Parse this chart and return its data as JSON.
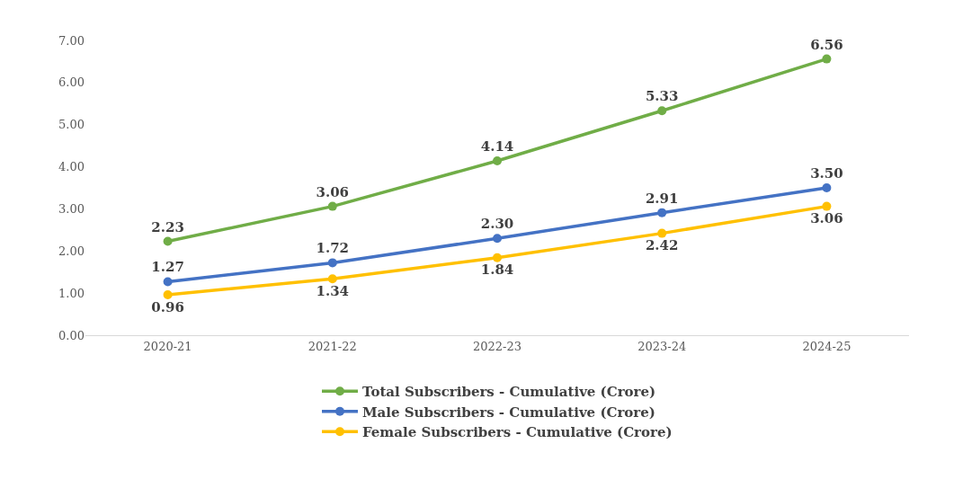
{
  "chart_data": {
    "type": "line",
    "categories": [
      "2020-21",
      "2021-22",
      "2022-23",
      "2023-24",
      "2024-25"
    ],
    "series": [
      {
        "name": "Total Subscribers - Cumulative (Crore)",
        "color": "#70ad47",
        "values": [
          2.23,
          3.06,
          4.14,
          5.33,
          6.56
        ],
        "value_labels": [
          "2.23",
          "3.06",
          "4.14",
          "5.33",
          "6.56"
        ]
      },
      {
        "name": "Male Subscribers - Cumulative (Crore)",
        "color": "#4472c4",
        "values": [
          1.27,
          1.72,
          2.3,
          2.91,
          3.5
        ],
        "value_labels": [
          "1.27",
          "1.72",
          "2.30",
          "2.91",
          "3.50"
        ]
      },
      {
        "name": "Female Subscribers - Cumulative (Crore)",
        "color": "#ffc000",
        "values": [
          0.96,
          1.34,
          1.84,
          2.42,
          3.06
        ],
        "value_labels": [
          "0.96",
          "1.34",
          "1.84",
          "2.42",
          "3.06"
        ]
      }
    ],
    "ylim": [
      0,
      7
    ],
    "yticks": [
      {
        "value": 0,
        "label": "0.00"
      },
      {
        "value": 1,
        "label": "1.00"
      },
      {
        "value": 2,
        "label": "2.00"
      },
      {
        "value": 3,
        "label": "3.00"
      },
      {
        "value": 4,
        "label": "4.00"
      },
      {
        "value": 5,
        "label": "5.00"
      },
      {
        "value": 6,
        "label": "6.00"
      },
      {
        "value": 7,
        "label": "7.00"
      }
    ],
    "grid": false,
    "legend": "bottom",
    "marker": "circle",
    "line_style": "solid"
  }
}
